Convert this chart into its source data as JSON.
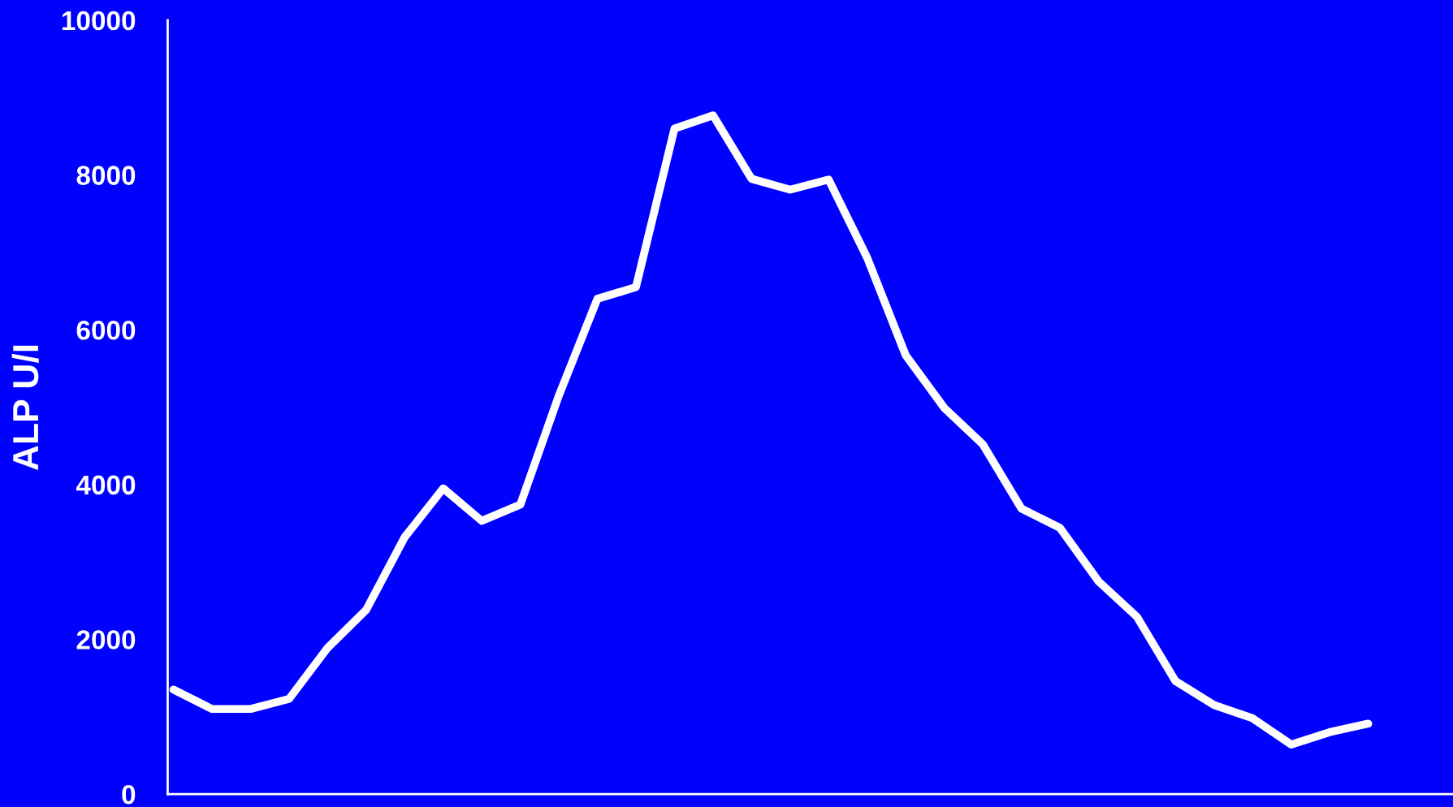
{
  "chart_data": {
    "type": "line",
    "ylabel": "ALP U/I",
    "ylim": [
      0,
      10000
    ],
    "yticks": [
      0,
      2000,
      4000,
      6000,
      8000,
      10000
    ],
    "tick_labels": "y",
    "grid": false,
    "marker": "none",
    "line_style": "solid",
    "categories": [
      null,
      null,
      null,
      null,
      null,
      null,
      null,
      null,
      null,
      null,
      null,
      null,
      null,
      null,
      null,
      null,
      null,
      null,
      null,
      null,
      null,
      null,
      null,
      null,
      null,
      null,
      null,
      null,
      null,
      null,
      null,
      null
    ],
    "series": [
      {
        "color": "#ffffff",
        "values": [
          1350,
          1100,
          1100,
          1230,
          1890,
          2380,
          3320,
          3950,
          3530,
          3740,
          5150,
          6400,
          6550,
          8600,
          8770,
          7950,
          7810,
          7940,
          6930,
          5670,
          4990,
          4520,
          3690,
          3440,
          2750,
          2290,
          1460,
          1150,
          980,
          640,
          800,
          910
        ]
      }
    ]
  }
}
